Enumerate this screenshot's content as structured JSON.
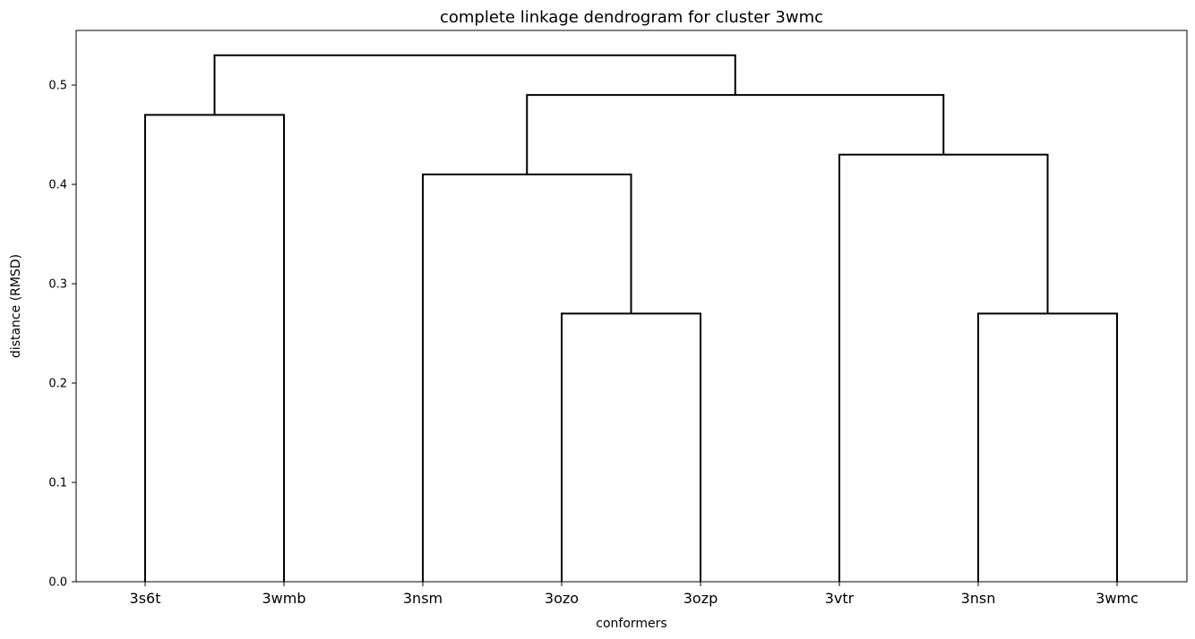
{
  "chart_data": {
    "type": "dendrogram",
    "title": "complete linkage dendrogram for cluster 3wmc",
    "xlabel": "conformers",
    "ylabel": "distance (RMSD)",
    "leaves": [
      "3s6t",
      "3wmb",
      "3nsm",
      "3ozo",
      "3ozp",
      "3vtr",
      "3nsn",
      "3wmc"
    ],
    "ylim": [
      0,
      0.555
    ],
    "yticks": [
      0.0,
      0.1,
      0.2,
      0.3,
      0.4,
      0.5
    ],
    "ytick_labels": [
      "0.0",
      "0.1",
      "0.2",
      "0.3",
      "0.4",
      "0.5"
    ],
    "grid": false,
    "merges": [
      {
        "left": "3ozo",
        "right": "3ozp",
        "height": 0.27
      },
      {
        "left": "3nsn",
        "right": "3wmc",
        "height": 0.27
      },
      {
        "left": "3nsm",
        "right": [
          "3ozo",
          "3ozp"
        ],
        "height": 0.41
      },
      {
        "left": "3vtr",
        "right": [
          "3nsn",
          "3wmc"
        ],
        "height": 0.43
      },
      {
        "left": "3s6t",
        "right": "3wmb",
        "height": 0.47
      },
      {
        "left": [
          "3nsm",
          "3ozo",
          "3ozp"
        ],
        "right": [
          "3vtr",
          "3nsn",
          "3wmc"
        ],
        "height": 0.49
      },
      {
        "left": [
          "3s6t",
          "3wmb"
        ],
        "right": [
          "3nsm",
          "3ozo",
          "3ozp",
          "3vtr",
          "3nsn",
          "3wmc"
        ],
        "height": 0.53
      }
    ]
  }
}
